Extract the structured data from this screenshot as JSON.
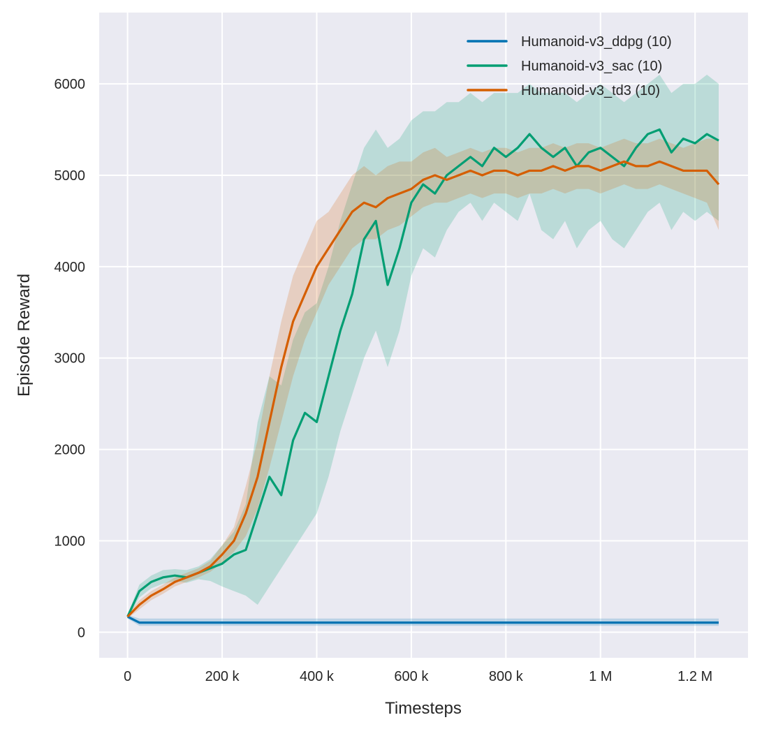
{
  "chart_data": {
    "type": "line",
    "title": "",
    "xlabel": "Timesteps",
    "ylabel": "Episode Reward",
    "xlim": [
      -60000,
      1312000
    ],
    "ylim": [
      -280,
      6780
    ],
    "grid": true,
    "legend_placement": "top-right",
    "xticks": [
      0,
      200000,
      400000,
      600000,
      800000,
      1000000,
      1200000
    ],
    "xtick_labels": [
      "0",
      "200 k",
      "400 k",
      "600 k",
      "800 k",
      "1 M",
      "1.2 M"
    ],
    "yticks": [
      0,
      1000,
      2000,
      3000,
      4000,
      5000,
      6000
    ],
    "ytick_labels": [
      "0",
      "1000",
      "2000",
      "3000",
      "4000",
      "5000",
      "6000"
    ],
    "x": [
      0,
      25000,
      50000,
      75000,
      100000,
      125000,
      150000,
      175000,
      200000,
      225000,
      250000,
      275000,
      300000,
      325000,
      350000,
      375000,
      400000,
      425000,
      450000,
      475000,
      500000,
      525000,
      550000,
      575000,
      600000,
      625000,
      650000,
      675000,
      700000,
      725000,
      750000,
      775000,
      800000,
      825000,
      850000,
      875000,
      900000,
      925000,
      950000,
      975000,
      1000000,
      1025000,
      1050000,
      1075000,
      1100000,
      1125000,
      1150000,
      1175000,
      1200000,
      1225000,
      1250000
    ],
    "series": [
      {
        "name": "Humanoid-v3_ddpg (10)",
        "color": "#0173b2",
        "values": [
          170,
          105,
          105,
          105,
          105,
          105,
          105,
          105,
          105,
          105,
          105,
          105,
          105,
          105,
          105,
          105,
          105,
          105,
          105,
          105,
          105,
          105,
          105,
          105,
          105,
          105,
          105,
          105,
          105,
          105,
          105,
          105,
          105,
          105,
          105,
          105,
          105,
          105,
          105,
          105,
          105,
          105,
          105,
          105,
          105,
          105,
          105,
          105,
          105,
          105,
          105
        ],
        "low": [
          150,
          70,
          70,
          70,
          70,
          70,
          70,
          70,
          70,
          70,
          70,
          70,
          70,
          70,
          70,
          70,
          70,
          70,
          70,
          70,
          70,
          70,
          70,
          70,
          70,
          70,
          70,
          70,
          70,
          70,
          70,
          70,
          70,
          70,
          70,
          70,
          70,
          70,
          70,
          70,
          70,
          70,
          70,
          70,
          70,
          70,
          70,
          70,
          70,
          70,
          70
        ],
        "high": [
          190,
          150,
          150,
          150,
          150,
          150,
          150,
          150,
          150,
          150,
          150,
          150,
          150,
          150,
          150,
          150,
          150,
          150,
          150,
          150,
          150,
          150,
          150,
          150,
          150,
          150,
          150,
          150,
          150,
          150,
          150,
          150,
          150,
          150,
          150,
          150,
          150,
          150,
          150,
          150,
          150,
          150,
          150,
          150,
          150,
          150,
          150,
          150,
          150,
          150,
          150
        ]
      },
      {
        "name": "Humanoid-v3_sac (10)",
        "color": "#029e73",
        "values": [
          170,
          450,
          550,
          600,
          620,
          600,
          650,
          700,
          750,
          850,
          900,
          1300,
          1700,
          1500,
          2100,
          2400,
          2300,
          2800,
          3300,
          3700,
          4300,
          4500,
          3800,
          4200,
          4700,
          4900,
          4800,
          5000,
          5100,
          5200,
          5100,
          5300,
          5200,
          5300,
          5450,
          5300,
          5200,
          5300,
          5100,
          5250,
          5300,
          5200,
          5100,
          5300,
          5450,
          5500,
          5250,
          5400,
          5350,
          5450,
          5380
        ],
        "low": [
          150,
          380,
          480,
          530,
          560,
          540,
          580,
          560,
          500,
          450,
          400,
          300,
          500,
          700,
          900,
          1100,
          1300,
          1700,
          2200,
          2600,
          3000,
          3300,
          2900,
          3300,
          3900,
          4200,
          4100,
          4400,
          4600,
          4700,
          4500,
          4700,
          4600,
          4500,
          4800,
          4400,
          4300,
          4500,
          4200,
          4400,
          4500,
          4300,
          4200,
          4400,
          4600,
          4700,
          4400,
          4600,
          4500,
          4600,
          4500
        ],
        "high": [
          190,
          520,
          620,
          680,
          690,
          680,
          720,
          800,
          950,
          1100,
          1400,
          2300,
          2800,
          2700,
          3200,
          3500,
          3600,
          4000,
          4500,
          4900,
          5300,
          5500,
          5300,
          5400,
          5600,
          5700,
          5700,
          5800,
          5800,
          5900,
          5800,
          5900,
          5900,
          5900,
          6000,
          5900,
          5900,
          5900,
          5800,
          5900,
          6000,
          5900,
          5800,
          5900,
          6000,
          6100,
          5900,
          6000,
          6000,
          6100,
          6000
        ]
      },
      {
        "name": "Humanoid-v3_td3 (10)",
        "color": "#d55e00",
        "values": [
          170,
          300,
          400,
          470,
          550,
          600,
          650,
          720,
          850,
          1000,
          1300,
          1700,
          2300,
          2900,
          3400,
          3700,
          4000,
          4200,
          4400,
          4600,
          4700,
          4650,
          4750,
          4800,
          4850,
          4950,
          5000,
          4950,
          5000,
          5050,
          5000,
          5050,
          5050,
          5000,
          5050,
          5050,
          5100,
          5050,
          5100,
          5100,
          5050,
          5100,
          5150,
          5100,
          5100,
          5150,
          5100,
          5050,
          5050,
          5050,
          4900
        ],
        "low": [
          150,
          250,
          350,
          420,
          500,
          550,
          600,
          660,
          760,
          880,
          1050,
          1350,
          1800,
          2300,
          2800,
          3200,
          3500,
          3800,
          4000,
          4200,
          4300,
          4300,
          4400,
          4450,
          4550,
          4650,
          4700,
          4700,
          4750,
          4800,
          4750,
          4800,
          4800,
          4750,
          4800,
          4800,
          4850,
          4800,
          4850,
          4850,
          4800,
          4850,
          4900,
          4850,
          4850,
          4900,
          4850,
          4800,
          4750,
          4700,
          4400
        ],
        "high": [
          190,
          350,
          450,
          520,
          600,
          650,
          700,
          780,
          950,
          1150,
          1600,
          2100,
          2800,
          3400,
          3900,
          4200,
          4500,
          4600,
          4800,
          5000,
          5100,
          5000,
          5100,
          5150,
          5150,
          5250,
          5300,
          5200,
          5250,
          5300,
          5250,
          5300,
          5300,
          5250,
          5300,
          5300,
          5350,
          5300,
          5350,
          5350,
          5300,
          5350,
          5400,
          5350,
          5350,
          5400,
          5350,
          5300,
          5350,
          5400,
          5400
        ]
      }
    ]
  }
}
